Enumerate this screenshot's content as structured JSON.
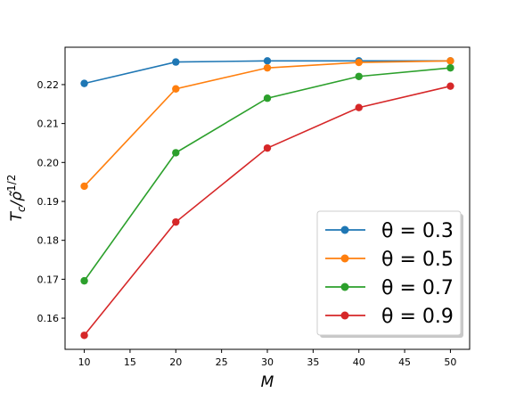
{
  "chart_data": {
    "type": "line",
    "xlabel": "M",
    "ylabel": "T_c/ρ̃^{1/2}",
    "xlim": [
      7.9,
      52.1
    ],
    "ylim": [
      0.152,
      0.2296
    ],
    "xticks": [
      10,
      15,
      20,
      25,
      30,
      35,
      40,
      45,
      50
    ],
    "yticks": [
      0.16,
      0.17,
      0.18,
      0.19,
      0.2,
      0.21,
      0.22
    ],
    "ytick_labels": [
      "0.16",
      "0.17",
      "0.18",
      "0.19",
      "0.20",
      "0.21",
      "0.22"
    ],
    "x": [
      10,
      20,
      30,
      40,
      50
    ],
    "series": [
      {
        "name": "θ = 0.3",
        "color": "#1f77b4",
        "values": [
          0.2203,
          0.2258,
          0.2261,
          0.2261,
          0.2261
        ]
      },
      {
        "name": "θ = 0.5",
        "color": "#ff7f0e",
        "values": [
          0.1939,
          0.2189,
          0.2243,
          0.2257,
          0.2261
        ]
      },
      {
        "name": "θ = 0.7",
        "color": "#2ca02c",
        "values": [
          0.1696,
          0.2025,
          0.2165,
          0.2221,
          0.2243
        ]
      },
      {
        "name": "θ = 0.9",
        "color": "#d62728",
        "values": [
          0.1556,
          0.1847,
          0.2037,
          0.2141,
          0.2196
        ]
      }
    ],
    "legend": {
      "position": "lower-right",
      "entries": [
        "θ = 0.3",
        "θ = 0.5",
        "θ = 0.7",
        "θ = 0.9"
      ]
    },
    "grid": false
  }
}
